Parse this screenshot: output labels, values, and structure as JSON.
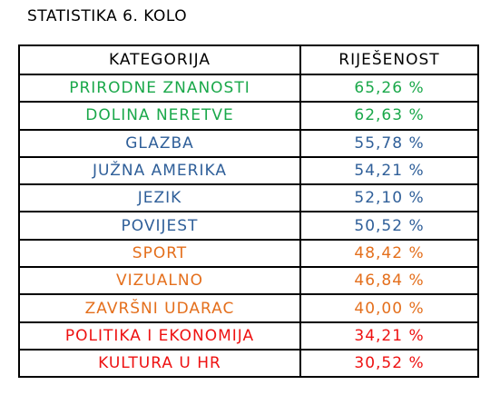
{
  "title": "STATISTIKA 6. KOLO",
  "table": {
    "headers": [
      "KATEGORIJA",
      "RIJEŠENOST"
    ],
    "rows": [
      {
        "category": "PRIRODNE ZNANOSTI",
        "value": "65,26 %",
        "color": "#1aa84a"
      },
      {
        "category": "DOLINA NERETVE",
        "value": "62,63 %",
        "color": "#1aa84a"
      },
      {
        "category": "GLAZBA",
        "value": "55,78 %",
        "color": "#2f5f99"
      },
      {
        "category": "JUŽNA AMERIKA",
        "value": "54,21 %",
        "color": "#2f5f99"
      },
      {
        "category": "JEZIK",
        "value": "52,10 %",
        "color": "#2f5f99"
      },
      {
        "category": "POVIJEST",
        "value": "50,52 %",
        "color": "#2f5f99"
      },
      {
        "category": "SPORT",
        "value": "48,42 %",
        "color": "#e46f1c"
      },
      {
        "category": "VIZUALNO",
        "value": "46,84 %",
        "color": "#e46f1c"
      },
      {
        "category": "ZAVRŠNI UDARAC",
        "value": "40,00 %",
        "color": "#e46f1c"
      },
      {
        "category": "POLITIKA I EKONOMIJA",
        "value": "34,21 %",
        "color": "#ee1111"
      },
      {
        "category": "KULTURA U HR",
        "value": "30,52 %",
        "color": "#ee1111"
      }
    ]
  }
}
